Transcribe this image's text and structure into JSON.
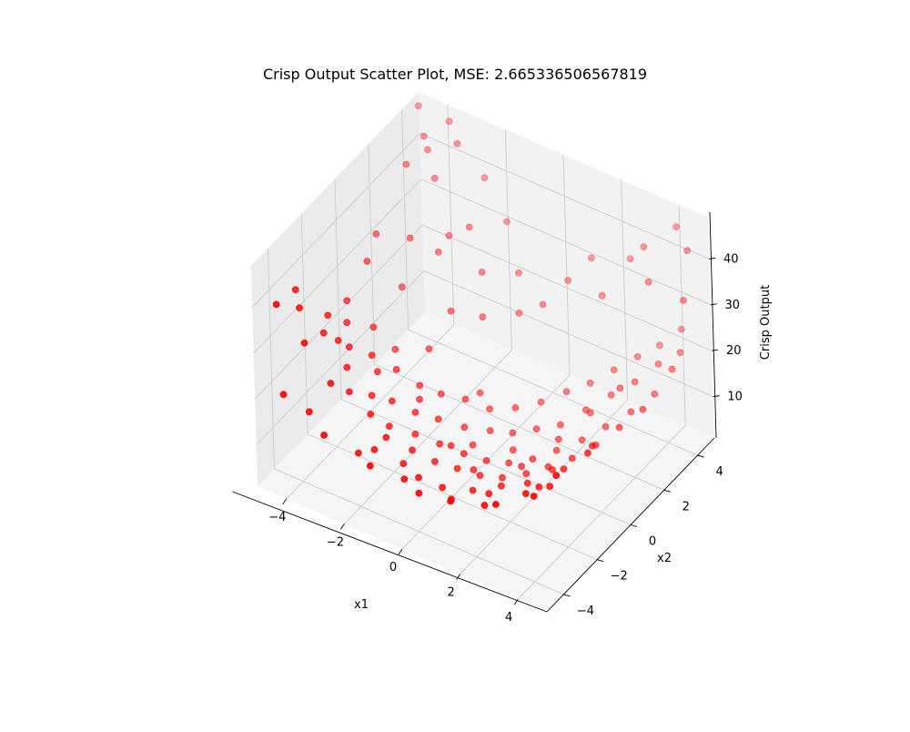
{
  "chart_data": {
    "type": "scatter",
    "title": "Crisp Output Scatter Plot, MSE: 2.665336506567819",
    "xlabel": "x1",
    "ylabel": "x2",
    "zlabel": "Crisp Output",
    "xlim": [
      -5,
      5
    ],
    "ylim": [
      -5,
      5
    ],
    "zlim": [
      1,
      49
    ],
    "xticks": [
      "−4",
      "−2",
      "0",
      "2",
      "4"
    ],
    "yticks": [
      "−4",
      "−2",
      "0",
      "2",
      "4"
    ],
    "zticks": [
      "10",
      "20",
      "30",
      "40"
    ],
    "grid": true,
    "marker_color": "#ff0000",
    "points": [
      [
        -4.8,
        -2.8,
        36
      ],
      [
        -4.5,
        -3.1,
        34
      ],
      [
        -4.3,
        -1.8,
        28
      ],
      [
        -4.1,
        -2.4,
        27
      ],
      [
        -4.4,
        -0.5,
        26
      ],
      [
        -3.9,
        -1.9,
        24
      ],
      [
        -4.0,
        -1.2,
        25
      ],
      [
        -3.7,
        -1.6,
        22
      ],
      [
        -3.5,
        -2.1,
        20
      ],
      [
        -3.4,
        -0.8,
        18
      ],
      [
        -3.2,
        -2.5,
        17
      ],
      [
        -3.1,
        -1.0,
        16
      ],
      [
        -2.9,
        -1.7,
        14
      ],
      [
        -2.8,
        -0.4,
        15
      ],
      [
        -2.6,
        -2.3,
        13
      ],
      [
        -2.5,
        -1.2,
        12
      ],
      [
        -2.3,
        0.1,
        11
      ],
      [
        -2.2,
        -1.9,
        10
      ],
      [
        -2.0,
        -0.7,
        9
      ],
      [
        -1.9,
        -2.6,
        11
      ],
      [
        -1.8,
        0.5,
        9
      ],
      [
        -1.6,
        -1.4,
        8
      ],
      [
        -1.5,
        -0.2,
        7
      ],
      [
        -1.3,
        -2.1,
        8
      ],
      [
        -1.2,
        0.9,
        8
      ],
      [
        -1.0,
        -1.0,
        6
      ],
      [
        -0.9,
        0.3,
        5
      ],
      [
        -0.7,
        -1.8,
        6
      ],
      [
        -0.6,
        1.3,
        6
      ],
      [
        -0.4,
        -0.6,
        4
      ],
      [
        -0.3,
        0.8,
        4
      ],
      [
        -0.1,
        -1.5,
        5
      ],
      [
        0.0,
        1.8,
        6
      ],
      [
        0.2,
        -0.3,
        3
      ],
      [
        0.3,
        1.1,
        4
      ],
      [
        0.5,
        -1.2,
        4
      ],
      [
        0.6,
        2.3,
        7
      ],
      [
        0.8,
        0.0,
        3
      ],
      [
        0.9,
        1.5,
        5
      ],
      [
        1.1,
        -0.9,
        4
      ],
      [
        1.2,
        2.8,
        9
      ],
      [
        1.4,
        0.4,
        4
      ],
      [
        1.5,
        1.9,
        6
      ],
      [
        1.7,
        -0.5,
        5
      ],
      [
        1.8,
        3.2,
        11
      ],
      [
        2.0,
        0.8,
        6
      ],
      [
        2.1,
        2.4,
        9
      ],
      [
        2.3,
        -0.2,
        7
      ],
      [
        2.4,
        3.6,
        14
      ],
      [
        2.6,
        1.3,
        8
      ],
      [
        2.7,
        2.9,
        12
      ],
      [
        2.9,
        0.2,
        9
      ],
      [
        3.0,
        4.0,
        17
      ],
      [
        3.2,
        1.7,
        11
      ],
      [
        3.3,
        3.3,
        15
      ],
      [
        3.5,
        0.6,
        12
      ],
      [
        3.6,
        4.3,
        20
      ],
      [
        3.8,
        2.2,
        14
      ],
      [
        3.9,
        3.7,
        19
      ],
      [
        4.1,
        1.0,
        16
      ],
      [
        4.2,
        4.6,
        24
      ],
      [
        4.4,
        2.6,
        18
      ],
      [
        4.5,
        4.0,
        22
      ],
      [
        4.7,
        1.4,
        20
      ],
      [
        4.8,
        3.0,
        23
      ],
      [
        -4.6,
        3.5,
        40
      ],
      [
        -4.2,
        4.1,
        42
      ],
      [
        -3.8,
        3.8,
        38
      ],
      [
        -3.4,
        4.5,
        44
      ],
      [
        -3.0,
        3.2,
        30
      ],
      [
        -4.7,
        1.8,
        31
      ],
      [
        -4.0,
        2.6,
        29
      ],
      [
        -3.6,
        1.4,
        24
      ],
      [
        -3.2,
        2.9,
        27
      ],
      [
        -2.7,
        3.9,
        30
      ],
      [
        -2.4,
        2.2,
        19
      ],
      [
        -2.0,
        3.4,
        24
      ],
      [
        -1.6,
        2.7,
        18
      ],
      [
        -1.2,
        4.2,
        23
      ],
      [
        -0.8,
        3.5,
        18
      ],
      [
        -4.9,
        4.8,
        47
      ],
      [
        -4.5,
        4.4,
        43
      ],
      [
        -3.9,
        4.9,
        46
      ],
      [
        -2.6,
        4.7,
        38
      ],
      [
        -1.8,
        4.6,
        31
      ],
      [
        -0.2,
        3.9,
        20
      ],
      [
        0.4,
        4.4,
        25
      ],
      [
        1.0,
        4.8,
        30
      ],
      [
        1.7,
        4.2,
        26
      ],
      [
        2.3,
        4.9,
        33
      ],
      [
        2.9,
        4.7,
        38
      ],
      [
        3.4,
        4.1,
        34
      ],
      [
        4.0,
        4.8,
        45
      ],
      [
        4.6,
        4.4,
        43
      ],
      [
        4.9,
        3.6,
        36
      ],
      [
        -4.3,
        -4.5,
        21
      ],
      [
        -3.6,
        -4.2,
        18
      ],
      [
        -2.8,
        -4.7,
        17
      ],
      [
        -2.1,
        -3.9,
        12
      ],
      [
        -1.4,
        -4.4,
        13
      ],
      [
        -0.7,
        -3.6,
        9
      ],
      [
        0.1,
        -4.1,
        10
      ],
      [
        0.8,
        -3.4,
        8
      ],
      [
        1.5,
        -4.6,
        14
      ],
      [
        2.2,
        -3.8,
        12
      ],
      [
        2.9,
        -4.3,
        16
      ],
      [
        3.6,
        -3.7,
        18
      ],
      [
        4.3,
        -4.4,
        22
      ],
      [
        4.8,
        -3.9,
        26
      ],
      [
        3.9,
        -2.8,
        17
      ],
      [
        3.1,
        -2.1,
        12
      ],
      [
        2.4,
        -1.6,
        9
      ],
      [
        1.7,
        -2.7,
        9
      ],
      [
        0.9,
        -2.3,
        6
      ],
      [
        0.2,
        -2.9,
        7
      ],
      [
        -0.5,
        -3.1,
        8
      ],
      [
        -1.2,
        -2.8,
        8
      ],
      [
        -1.9,
        -3.3,
        11
      ],
      [
        4.6,
        -1.7,
        22
      ],
      [
        4.1,
        -0.6,
        18
      ],
      [
        3.5,
        -1.3,
        14
      ],
      [
        2.8,
        -0.8,
        10
      ],
      [
        -4.7,
        -4.1,
        38
      ],
      [
        -4.0,
        -3.7,
        30
      ],
      [
        -3.3,
        -3.4,
        22
      ],
      [
        0.6,
        0.6,
        3
      ],
      [
        -0.5,
        0.1,
        3
      ],
      [
        1.3,
        -0.1,
        4
      ],
      [
        -1.1,
        1.6,
        7
      ],
      [
        -2.6,
        1.2,
        14
      ],
      [
        -3.3,
        0.4,
        15
      ],
      [
        -4.5,
        0.9,
        29
      ],
      [
        -3.8,
        0.0,
        20
      ],
      [
        1.9,
        1.1,
        7
      ],
      [
        2.5,
        2.0,
        11
      ],
      [
        3.2,
        2.6,
        16
      ],
      [
        -2.2,
        -0.1,
        9
      ],
      [
        0.1,
        -0.9,
        3
      ],
      [
        -0.9,
        -0.5,
        4
      ],
      [
        1.6,
        -1.8,
        7
      ]
    ]
  }
}
